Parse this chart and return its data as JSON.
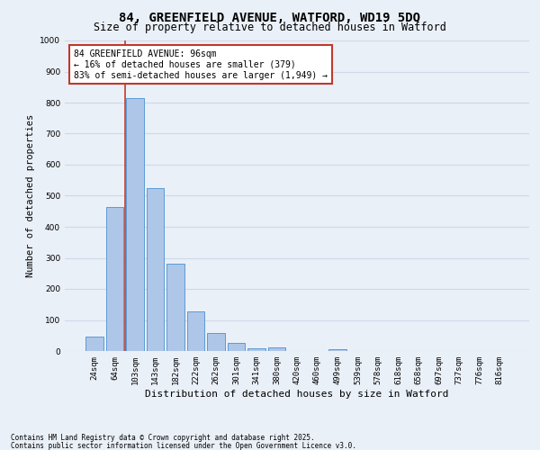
{
  "title_line1": "84, GREENFIELD AVENUE, WATFORD, WD19 5DQ",
  "title_line2": "Size of property relative to detached houses in Watford",
  "xlabel": "Distribution of detached houses by size in Watford",
  "ylabel": "Number of detached properties",
  "categories": [
    "24sqm",
    "64sqm",
    "103sqm",
    "143sqm",
    "182sqm",
    "222sqm",
    "262sqm",
    "301sqm",
    "341sqm",
    "380sqm",
    "420sqm",
    "460sqm",
    "499sqm",
    "539sqm",
    "578sqm",
    "618sqm",
    "658sqm",
    "697sqm",
    "737sqm",
    "776sqm",
    "816sqm"
  ],
  "values": [
    45,
    465,
    815,
    525,
    280,
    128,
    57,
    25,
    8,
    13,
    0,
    0,
    7,
    0,
    0,
    0,
    0,
    0,
    0,
    0,
    0
  ],
  "bar_color": "#aec6e8",
  "bar_edge_color": "#5b9bd5",
  "grid_color": "#d0d8e8",
  "background_color": "#eaf0f8",
  "vline_color": "#c0392b",
  "vline_x": 1.5,
  "annotation_text": "84 GREENFIELD AVENUE: 96sqm\n← 16% of detached houses are smaller (379)\n83% of semi-detached houses are larger (1,949) →",
  "annotation_box_color": "#c0392b",
  "annotation_bg": "#ffffff",
  "footer_line1": "Contains HM Land Registry data © Crown copyright and database right 2025.",
  "footer_line2": "Contains public sector information licensed under the Open Government Licence v3.0.",
  "ylim": [
    0,
    1000
  ],
  "yticks": [
    0,
    100,
    200,
    300,
    400,
    500,
    600,
    700,
    800,
    900,
    1000
  ],
  "title1_fontsize": 10,
  "title2_fontsize": 8.5,
  "ylabel_fontsize": 7.5,
  "xlabel_fontsize": 8,
  "tick_fontsize": 6.5,
  "ann_fontsize": 7,
  "footer_fontsize": 5.5
}
